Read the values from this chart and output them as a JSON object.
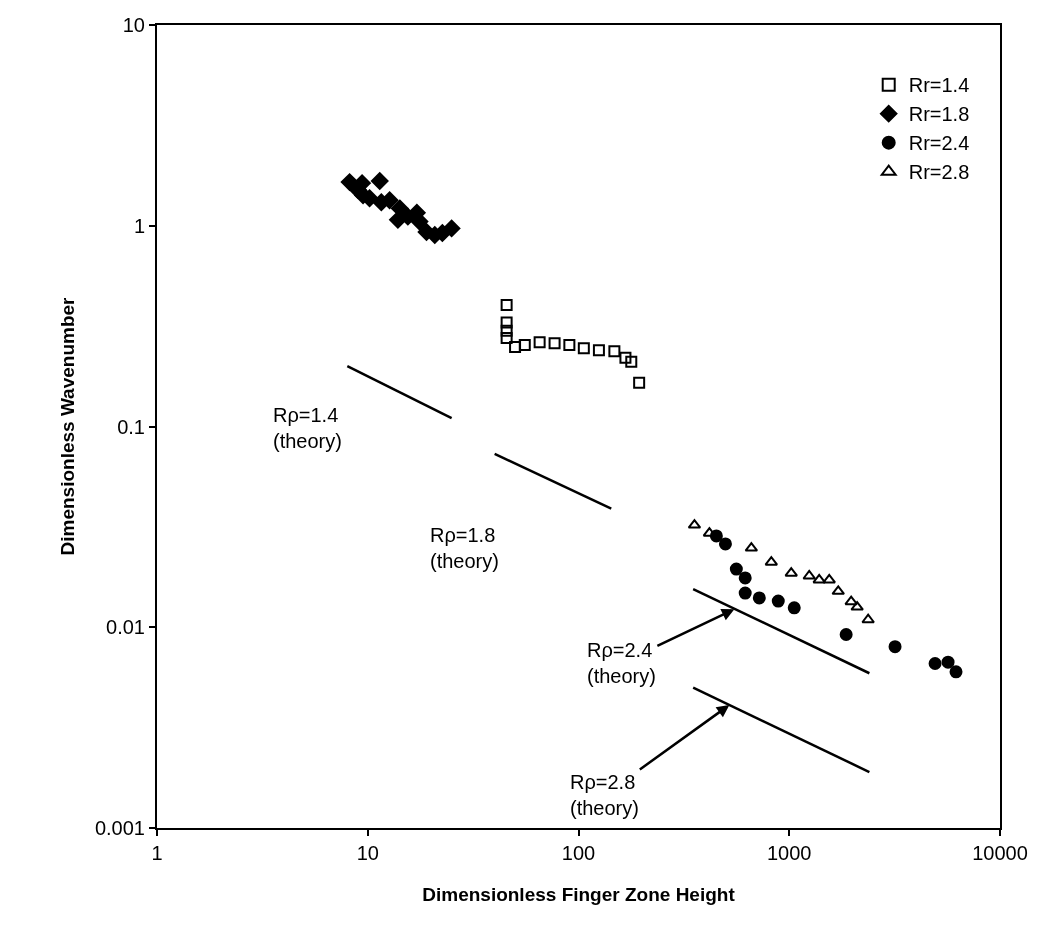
{
  "chart_data": {
    "type": "scatter",
    "xlabel": "Dimensionless Finger Zone Height",
    "ylabel": "Dimensionless Wavenumber",
    "log": "xy",
    "grid": false,
    "legend": "top right",
    "xlim": [
      1,
      10000
    ],
    "xticks": [
      1,
      10,
      100,
      1000,
      10000
    ],
    "ylim": [
      0.001,
      10
    ],
    "yticks": [
      0.001,
      0.01,
      0.1,
      1,
      10
    ],
    "series": [
      {
        "name": "Rr=1.4",
        "color": "#000000",
        "marker": "square",
        "x": [
          45.6,
          45.6,
          45.6,
          45.6,
          50,
          55.6,
          65.4,
          77,
          90.5,
          106,
          125,
          148,
          167,
          178,
          194
        ],
        "values": [
          0.403,
          0.33,
          0.3,
          0.276,
          0.249,
          0.255,
          0.263,
          0.26,
          0.255,
          0.245,
          0.24,
          0.237,
          0.22,
          0.21,
          0.165
        ]
      },
      {
        "name": "Rr=1.8",
        "color": "#000000",
        "marker": "diamond",
        "x": [
          8.2,
          11.4,
          9.4,
          8.97,
          9.5,
          10.2,
          11.6,
          12.7,
          14.2,
          13.9,
          15.5,
          17.1,
          17.6,
          19.0,
          20.8,
          22.6,
          25.0
        ],
        "values": [
          1.65,
          1.67,
          1.63,
          1.51,
          1.42,
          1.37,
          1.31,
          1.34,
          1.22,
          1.07,
          1.11,
          1.16,
          1.05,
          0.93,
          0.9,
          0.92,
          0.97
        ]
      },
      {
        "name": "Rr=2.4",
        "color": "#000000",
        "marker": "circle",
        "x": [
          451,
          498,
          561,
          618,
          618,
          721,
          887,
          1056,
          1862,
          3177,
          4920,
          5670,
          6185
        ],
        "values": [
          0.0285,
          0.026,
          0.0195,
          0.0176,
          0.0148,
          0.014,
          0.0135,
          0.0125,
          0.0092,
          0.008,
          0.0066,
          0.0067,
          0.006
        ]
      },
      {
        "name": "Rr=2.8",
        "color": "#000000",
        "marker": "triangle",
        "x": [
          355,
          418,
          661,
          822,
          1022,
          1244,
          1387,
          1548,
          1708,
          1967,
          2100,
          2368
        ],
        "values": [
          0.0323,
          0.0294,
          0.0248,
          0.0211,
          0.0186,
          0.018,
          0.0172,
          0.0172,
          0.0151,
          0.0134,
          0.0126,
          0.0109
        ]
      },
      {
        "type": "line",
        "color": "#000000",
        "line_style": "solid",
        "x": [
          8,
          25
        ],
        "values": [
          0.2,
          0.11
        ]
      },
      {
        "type": "line",
        "color": "#000000",
        "line_style": "solid",
        "x": [
          40,
          143
        ],
        "values": [
          0.073,
          0.039
        ]
      },
      {
        "type": "line",
        "color": "#000000",
        "line_style": "solid",
        "x": [
          350,
          2400
        ],
        "values": [
          0.0155,
          0.0059
        ]
      },
      {
        "type": "line",
        "color": "#000000",
        "line_style": "solid",
        "x": [
          350,
          2400
        ],
        "values": [
          0.005,
          0.0019
        ]
      }
    ],
    "annotations": [
      "Rρ=1.4\n(theory)",
      "Rρ=1.8\n(theory)",
      {
        "text": "Rρ=2.4\n(theory)",
        "x": 549,
        "y": 0.0123
      },
      {
        "text": "Rρ=2.8\n(theory)",
        "x": 520,
        "y": 0.0041
      }
    ]
  }
}
